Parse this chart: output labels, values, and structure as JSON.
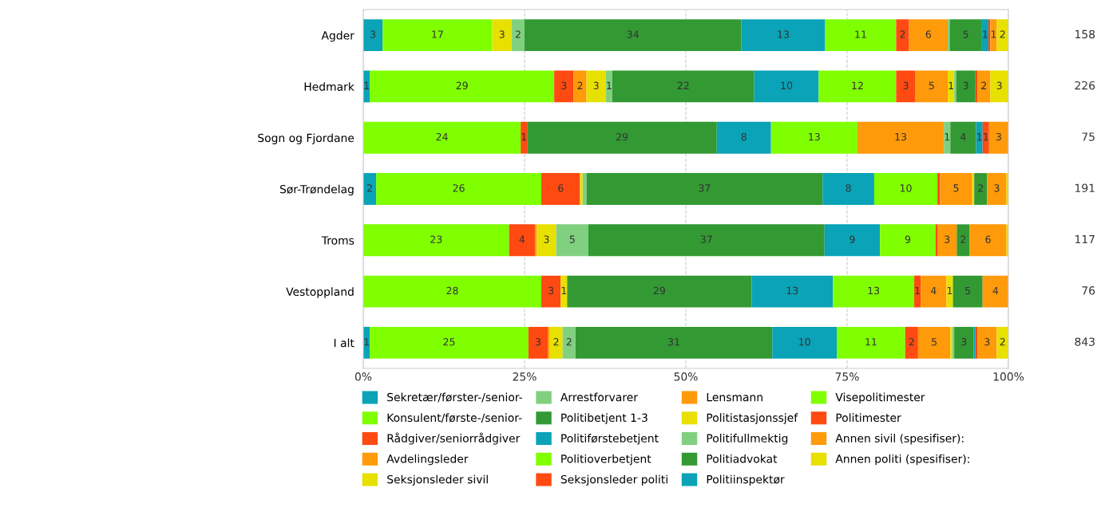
{
  "chart_data": {
    "type": "bar",
    "orientation": "horizontal",
    "stacked": true,
    "categories": [
      "Agder",
      "Hedmark",
      "Sogn og Fjordane",
      "Sør-Trøndelag",
      "Troms",
      "Vestoppland",
      "I alt"
    ],
    "xlim": [
      0,
      100
    ],
    "xticks": [
      {
        "value": 0,
        "label": "0%"
      },
      {
        "value": 25,
        "label": "25%"
      },
      {
        "value": 50,
        "label": "50%"
      },
      {
        "value": 75,
        "label": "75%"
      },
      {
        "value": 100,
        "label": "100%"
      }
    ],
    "grid": "x",
    "legend": "bottom",
    "annotations": [
      "158",
      "226",
      "75",
      "191",
      "117",
      "76",
      "843"
    ],
    "series": [
      {
        "name": "Sekretær/førster-/senior-",
        "color": "#0aa3b8",
        "values": [
          3,
          1,
          null,
          2,
          null,
          null,
          1
        ],
        "value_labels": [
          "3",
          "1",
          null,
          "2",
          null,
          null,
          "1"
        ]
      },
      {
        "name": "Konsulent/første-/senior-",
        "color": "#80ff00",
        "values": [
          17,
          28.6,
          24.4,
          25.6,
          22.6,
          27.6,
          24.6
        ],
        "value_labels": [
          "17",
          "29",
          "24",
          "26",
          "23",
          "28",
          "25"
        ]
      },
      {
        "name": "Rådgiver/seniorrådgiver",
        "color": "#ff4a12",
        "values": [
          null,
          3,
          1,
          6,
          4,
          3,
          3
        ],
        "value_labels": [
          null,
          "3",
          "1",
          "6",
          "4",
          "3",
          "3"
        ]
      },
      {
        "name": "Avdelingsleder",
        "color": "#ff9a0a",
        "values": [
          null,
          2,
          null,
          null,
          0.3,
          null,
          0.3
        ],
        "value_labels": [
          null,
          "2",
          null,
          null,
          null,
          null,
          null
        ]
      },
      {
        "name": "Seksjonsleder sivil",
        "color": "#e8e000",
        "values": [
          3,
          3,
          null,
          0.4,
          3,
          1,
          2
        ],
        "value_labels": [
          "3",
          "3",
          null,
          null,
          "3",
          "1",
          "2"
        ]
      },
      {
        "name": "Arrestforvarer",
        "color": "#80d080",
        "values": [
          2,
          1,
          null,
          0.6,
          5,
          null,
          2
        ],
        "value_labels": [
          "2",
          "1",
          null,
          null,
          "5",
          null,
          "2"
        ]
      },
      {
        "name": "Politibetjent 1-3",
        "color": "#339933",
        "values": [
          33.6,
          22,
          29.4,
          36.6,
          36.6,
          28.6,
          30.5
        ],
        "value_labels": [
          "34",
          "22",
          "29",
          "37",
          "37",
          "29",
          "31"
        ]
      },
      {
        "name": "Politiførstebetjent",
        "color": "#0aa3b8",
        "values": [
          13,
          10,
          8.4,
          8,
          8.6,
          12.6,
          10
        ],
        "value_labels": [
          "13",
          "10",
          "8",
          "8",
          "9",
          "13",
          "10"
        ]
      },
      {
        "name": "Politioverbetjent",
        "color": "#80ff00",
        "values": [
          11,
          12,
          13.4,
          9.8,
          8.6,
          12.6,
          10.6
        ],
        "value_labels": [
          "11",
          "12",
          "13",
          "10",
          "9",
          "13",
          "11"
        ]
      },
      {
        "name": "Seksjonsleder politi",
        "color": "#ff4a12",
        "values": [
          2,
          3,
          null,
          0.4,
          0.3,
          1,
          2
        ],
        "value_labels": [
          "2",
          "3",
          null,
          null,
          null,
          "1",
          "2"
        ]
      },
      {
        "name": "Lensmann",
        "color": "#ff9a0a",
        "values": [
          6,
          5,
          13.4,
          5,
          3,
          4,
          5
        ],
        "value_labels": [
          "6",
          "5",
          "13",
          "5",
          "3",
          "4",
          "5"
        ]
      },
      {
        "name": "Politistasjonssjef",
        "color": "#e8e000",
        "values": [
          null,
          1,
          null,
          0.3,
          null,
          1,
          0.3
        ],
        "value_labels": [
          null,
          "1",
          null,
          null,
          null,
          "1",
          null
        ]
      },
      {
        "name": "Politifullmektig",
        "color": "#80d080",
        "values": [
          0.3,
          0.3,
          1,
          null,
          null,
          null,
          0.3
        ],
        "value_labels": [
          null,
          null,
          "1",
          null,
          null,
          null,
          null
        ]
      },
      {
        "name": "Politiadvokat",
        "color": "#339933",
        "values": [
          5,
          3,
          4,
          2,
          2,
          4.6,
          3
        ],
        "value_labels": [
          "5",
          "3",
          "4",
          "2",
          "2",
          "5",
          "3"
        ]
      },
      {
        "name": "Politiinspektør",
        "color": "#0aa3b8",
        "values": [
          1,
          null,
          1,
          null,
          null,
          null,
          0.3
        ],
        "value_labels": [
          "1",
          null,
          "1",
          null,
          null,
          null,
          null
        ]
      },
      {
        "name": "Visepolitimester",
        "color": "#80ff00",
        "values": [
          null,
          null,
          null,
          null,
          null,
          null,
          null
        ],
        "value_labels": [
          null,
          null,
          null,
          null,
          null,
          null,
          null
        ]
      },
      {
        "name": "Politimester",
        "color": "#ff4a12",
        "values": [
          0.3,
          0.3,
          1,
          null,
          null,
          null,
          0.3
        ],
        "value_labels": [
          null,
          null,
          "1",
          null,
          null,
          null,
          null
        ]
      },
      {
        "name": "Annen sivil (spesifiser):",
        "color": "#ff9a0a",
        "values": [
          1,
          2,
          3,
          3,
          5.7,
          4,
          3
        ],
        "value_labels": [
          "1",
          "2",
          "3",
          "3",
          "6",
          "4",
          "3"
        ]
      },
      {
        "name": "Annen politi (spesifiser):",
        "color": "#e8e000",
        "values": [
          2,
          3,
          null,
          0.3,
          0.3,
          null,
          2
        ],
        "value_labels": [
          "2",
          "3",
          null,
          null,
          null,
          null,
          "2"
        ]
      }
    ]
  }
}
